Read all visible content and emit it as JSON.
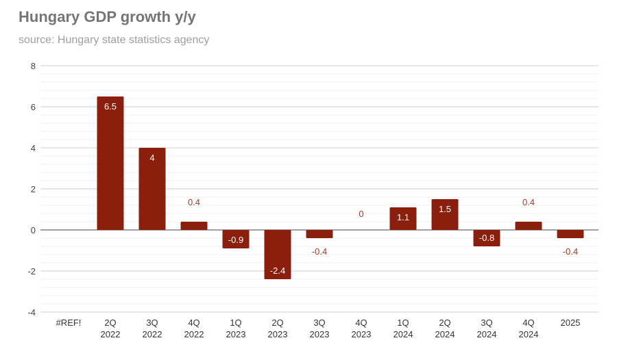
{
  "chart_data": {
    "type": "bar",
    "title": "Hungary GDP growth y/y",
    "subtitle": "source: Hungary state statistics agency",
    "xlabel": "",
    "ylabel": "",
    "ylim": [
      -4,
      8
    ],
    "yticks": [
      "8",
      "6",
      "4",
      "2",
      "0",
      "-2",
      "-4"
    ],
    "grid": true,
    "categories": [
      [
        "#REF!"
      ],
      [
        "2Q",
        "2022"
      ],
      [
        "3Q",
        "2022"
      ],
      [
        "4Q",
        "2022"
      ],
      [
        "1Q",
        "2023"
      ],
      [
        "2Q",
        "2023"
      ],
      [
        "3Q",
        "2023"
      ],
      [
        "4Q",
        "2023"
      ],
      [
        "1Q",
        "2024"
      ],
      [
        "2Q",
        "2024"
      ],
      [
        "3Q",
        "2024"
      ],
      [
        "4Q",
        "2024"
      ],
      [
        "2025"
      ]
    ],
    "values": [
      null,
      6.5,
      4,
      0.4,
      -0.9,
      -2.4,
      -0.4,
      0,
      1.1,
      1.5,
      -0.8,
      0.4,
      -0.4
    ],
    "bar_color": "#8a1f0e",
    "label_outside_color": "#a13a2a"
  }
}
